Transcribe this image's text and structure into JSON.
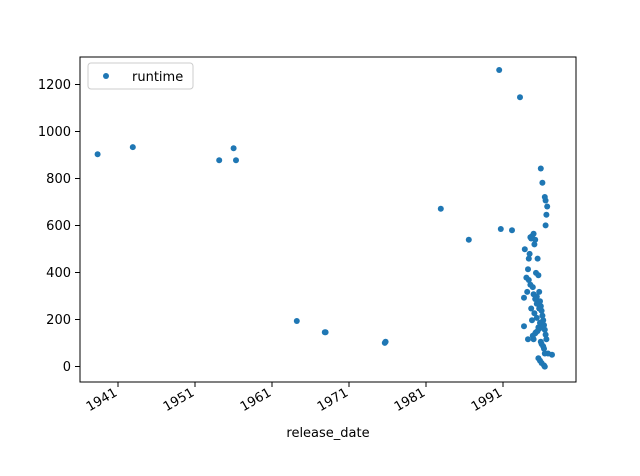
{
  "chart_data": {
    "type": "scatter",
    "title": "",
    "xlabel": "release_date",
    "ylabel": "",
    "xlim": [
      1937.5,
      1999.5
    ],
    "ylim": [
      -60,
      1310
    ],
    "x_ticks": [
      1941,
      1951,
      1961,
      1971,
      1981,
      1991
    ],
    "x_tick_labels": [
      "1941",
      "1951",
      "1961",
      "1971",
      "1981",
      "1991"
    ],
    "y_ticks": [
      0,
      200,
      400,
      600,
      800,
      1000,
      1200
    ],
    "y_tick_labels": [
      "0",
      "200",
      "400",
      "600",
      "800",
      "1000",
      "1200"
    ],
    "grid": false,
    "legend": {
      "position": "upper-left",
      "entries": [
        "runtime"
      ]
    },
    "color": "#1f77b4",
    "series": [
      {
        "name": "runtime",
        "x": [
          1939.7,
          1944.1,
          1954.9,
          1956.7,
          1957.0,
          1964.6,
          1968.1,
          1968.2,
          1975.6,
          1975.7,
          1982.6,
          1986.1,
          1989.9,
          1990.1,
          1991.5,
          1992.5,
          1993.0,
          1993.1,
          1993.4,
          1993.5,
          1993.6,
          1993.7,
          1993.8,
          1993.9,
          1994.0,
          1994.1,
          1994.2,
          1994.3,
          1994.4,
          1994.5,
          1994.6,
          1994.7,
          1994.8,
          1994.9,
          1995.0,
          1995.1,
          1995.2,
          1995.3,
          1995.4,
          1995.5,
          1995.6,
          1995.7,
          1995.8,
          1996.0,
          1996.5,
          1994.2,
          1994.5,
          1994.8,
          1995.1,
          1995.4,
          1994.0,
          1993.9,
          1994.3,
          1994.6,
          1995.0,
          1995.3,
          1995.6,
          1993.5,
          1994.1,
          1994.4,
          1994.7,
          1994.9,
          1995.2,
          1995.5,
          1994.8,
          1995.0,
          1995.2,
          1995.5,
          1995.6,
          1995.7,
          1995.8,
          1995.9,
          1995.7,
          1995.6,
          1995.3,
          1995.1,
          1994.9,
          1994.6,
          1994.4,
          1994.2,
          1993.8,
          1993.6,
          1993.3,
          1993.0
        ],
        "y": [
          900,
          930,
          875,
          925,
          875,
          197,
          150,
          150,
          105,
          110,
          670,
          540,
          1255,
          585,
          580,
          1140,
          295,
          500,
          320,
          415,
          460,
          480,
          550,
          545,
          555,
          340,
          565,
          520,
          540,
          400,
          300,
          460,
          390,
          320,
          280,
          260,
          240,
          220,
          200,
          180,
          160,
          140,
          120,
          60,
          55,
          120,
          150,
          170,
          110,
          90,
          200,
          250,
          230,
          210,
          190,
          170,
          60,
          120,
          135,
          145,
          155,
          165,
          100,
          80,
          40,
          30,
          20,
          10,
          5,
          600,
          645,
          680,
          705,
          720,
          780,
          840,
          250,
          270,
          290,
          310,
          350,
          370,
          380,
          175
        ]
      }
    ]
  }
}
